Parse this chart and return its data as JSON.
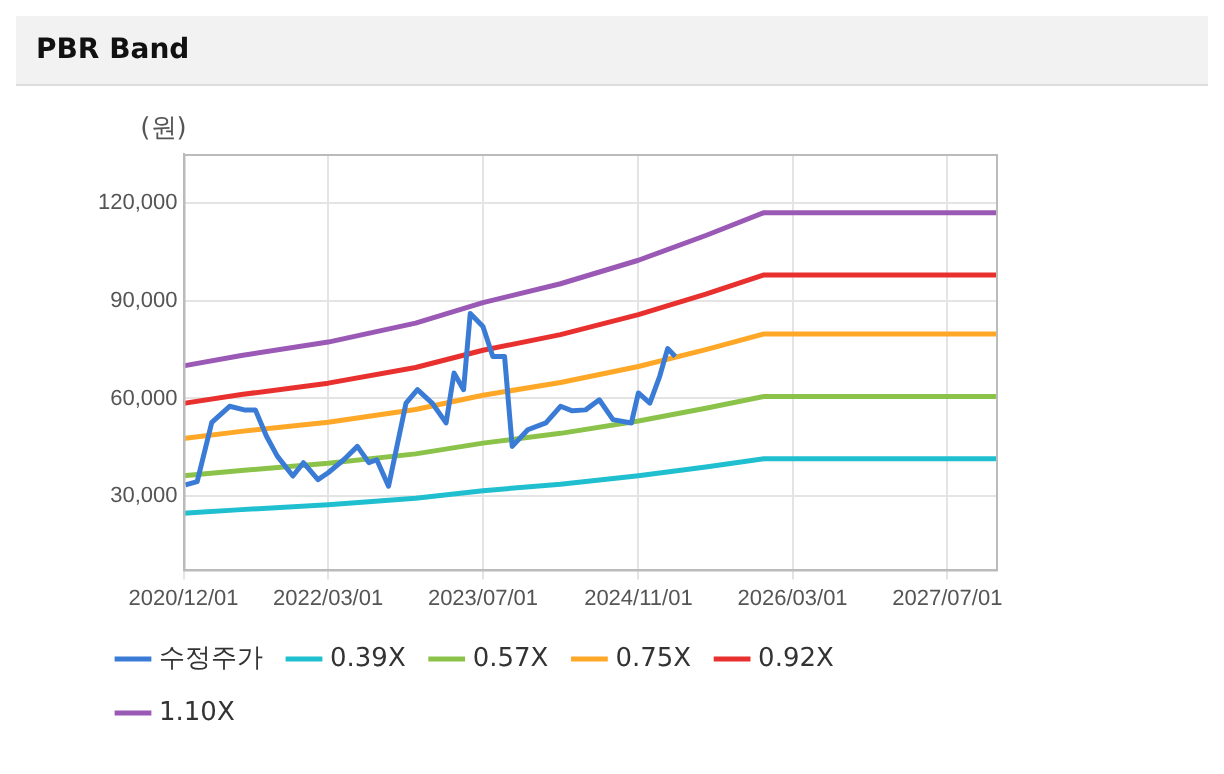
{
  "chart_data": {
    "type": "line",
    "title": "PBR Band",
    "ylabel": "(원)",
    "xlim": [
      "2020-12-01",
      "2027-12-01"
    ],
    "xticks": [
      {
        "value": "2020-12-01",
        "label": "2020/12/01"
      },
      {
        "value": "2022-03-01",
        "label": "2022/03/01"
      },
      {
        "value": "2023-07-01",
        "label": "2023/07/01"
      },
      {
        "value": "2024-11-01",
        "label": "2024/11/01"
      },
      {
        "value": "2026-03-01",
        "label": "2026/03/01"
      },
      {
        "value": "2027-07-01",
        "label": "2027/07/01"
      }
    ],
    "ylim": [
      7500,
      135000
    ],
    "yticks": [
      {
        "value": 30000,
        "label": "30,000"
      },
      {
        "value": 60000,
        "label": "60,000"
      },
      {
        "value": 90000,
        "label": "90,000"
      },
      {
        "value": 120000,
        "label": "120,000"
      }
    ],
    "grid": true,
    "legend": "bottom",
    "marker": "none",
    "line_style": "solid",
    "x": [
      "2020-12-01",
      "2021-06-01",
      "2022-03-01",
      "2022-12-01",
      "2023-07-01",
      "2024-03-01",
      "2024-11-01",
      "2025-06-01",
      "2025-12-01",
      "2027-12-01"
    ],
    "series": [
      {
        "name": "수정주가",
        "color": "#3a7bd5",
        "x": [
          "2020-12-07",
          "2021-01-13",
          "2021-02-28",
          "2021-04-25",
          "2021-06-10",
          "2021-07-15",
          "2021-08-19",
          "2021-09-22",
          "2021-11-10",
          "2021-12-13",
          "2022-01-28",
          "2022-03-01",
          "2022-04-19",
          "2022-06-01",
          "2022-07-07",
          "2022-08-01",
          "2022-09-07",
          "2022-10-10",
          "2022-11-01",
          "2022-12-07",
          "2023-01-22",
          "2023-03-07",
          "2023-04-01",
          "2023-05-01",
          "2023-05-22",
          "2023-07-01",
          "2023-08-01",
          "2023-09-07",
          "2023-10-01",
          "2023-11-19",
          "2024-01-15",
          "2024-03-01",
          "2024-04-07",
          "2024-05-19",
          "2024-07-01",
          "2024-08-13",
          "2024-10-10",
          "2024-11-01",
          "2024-12-07",
          "2025-01-07",
          "2025-02-01",
          "2025-02-25"
        ],
        "values": [
          33500,
          34500,
          52700,
          57600,
          56500,
          56500,
          48400,
          42300,
          36200,
          40300,
          35100,
          37200,
          41200,
          45300,
          40300,
          41200,
          33100,
          48400,
          58600,
          62700,
          58600,
          52500,
          67800,
          62700,
          86100,
          82100,
          72900,
          72900,
          45300,
          50400,
          52500,
          57600,
          56200,
          56500,
          59600,
          53500,
          52500,
          61700,
          58600,
          66800,
          75300,
          72900
        ]
      },
      {
        "name": "0.39X",
        "color": "#1fbfcf",
        "values": [
          24800,
          25900,
          27400,
          29400,
          31700,
          33700,
          36300,
          39000,
          41500,
          41500
        ]
      },
      {
        "name": "0.57X",
        "color": "#8bc34a",
        "values": [
          36300,
          37900,
          40100,
          43000,
          46300,
          49300,
          53100,
          57000,
          60600,
          60600
        ]
      },
      {
        "name": "0.75X",
        "color": "#ffa726",
        "values": [
          47700,
          49900,
          52700,
          56600,
          61000,
          64900,
          69800,
          75000,
          79800,
          79800
        ]
      },
      {
        "name": "0.92X",
        "color": "#e8312f",
        "values": [
          58500,
          61200,
          64700,
          69500,
          74800,
          79600,
          85700,
          92000,
          97900,
          97900
        ]
      },
      {
        "name": "1.10X",
        "color": "#9b59b6",
        "values": [
          70000,
          73200,
          77300,
          83100,
          89400,
          95200,
          102400,
          110000,
          117000,
          117000
        ]
      }
    ]
  }
}
